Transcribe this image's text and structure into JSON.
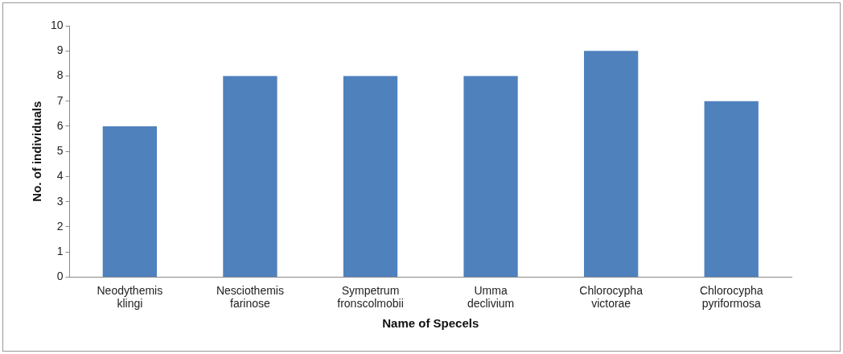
{
  "chart_data": {
    "type": "bar",
    "xlabel": "Name of Specels",
    "ylabel": "No. of individuals",
    "categories": [
      "Neodythemis klingi",
      "Nesciothemis farinose",
      "Sympetrum fronscolmobii",
      "Umma declivium",
      "Chlorocypha victorae",
      "Chlorocypha pyriformosa"
    ],
    "values": [
      6,
      8,
      8,
      8,
      9,
      7
    ],
    "color": "#4f81bd",
    "ylim": [
      0,
      10
    ],
    "yticks": [
      0,
      1,
      2,
      3,
      4,
      5,
      6,
      7,
      8,
      9,
      10
    ],
    "grid": false,
    "legend": false
  }
}
